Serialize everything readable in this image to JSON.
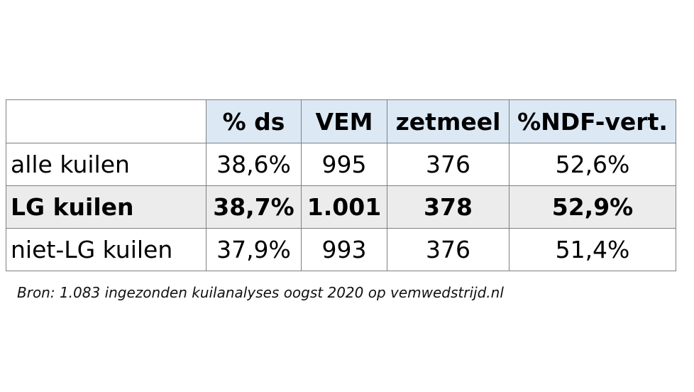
{
  "table": {
    "header": [
      "% ds",
      "VEM",
      "zetmeel",
      "%NDF-vert."
    ],
    "rows": [
      [
        "alle kuilen",
        "38,6%",
        "995",
        "376",
        "52,6%"
      ],
      [
        "LG kuilen",
        "38,7%",
        "1.001",
        "378",
        "52,9%"
      ],
      [
        "niet-LG kuilen",
        "37,9%",
        "993",
        "376",
        "51,4%"
      ]
    ]
  },
  "source": "Bron: 1.083 ingezonden kuilanalyses oogst 2020 op vemwedstrijd.nl"
}
